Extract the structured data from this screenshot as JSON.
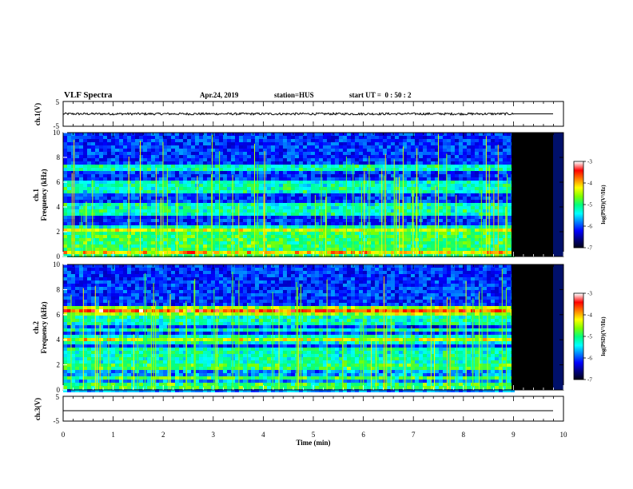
{
  "header": {
    "title": "VLF Spectra",
    "date": "Apr.24, 2019",
    "station": "station=HUS",
    "start": "start UT =  0 : 50 : 2"
  },
  "colors": {
    "background": "#000000",
    "colormap": [
      "#000010",
      "#00007f",
      "#0000ff",
      "#007fff",
      "#00ffff",
      "#00ff7f",
      "#7fff00",
      "#ffff00",
      "#ff7f00",
      "#ff0000",
      "#ffffff"
    ]
  },
  "chart_data": [
    {
      "type": "line",
      "panel": "ch1-waveform",
      "ylabel": "ch.1(V)",
      "ylim": [
        -5,
        5
      ],
      "yticks": [
        "5",
        "-5"
      ],
      "series": [
        {
          "x": [
            0,
            9
          ],
          "y": [
            0,
            0
          ]
        }
      ],
      "note_value": "signal near 0 V with small noise until ~9 min, flat afterwards"
    },
    {
      "type": "heatmap",
      "panel": "ch1-spectrogram",
      "ylabel": "ch.1\nFrequency (kHz)",
      "ylim": [
        0,
        10
      ],
      "yticks": [
        "0",
        "2",
        "4",
        "6",
        "8",
        "10"
      ],
      "data_end_min": 9.0,
      "colorbar": {
        "label": "log(PSD)(V²/Hz)",
        "range": [
          -7,
          -3
        ],
        "ticks": [
          "-3",
          "-4",
          "-5",
          "-6",
          "-7"
        ]
      },
      "bands_khz": [
        0.3,
        0.5,
        1.0,
        1.4,
        2.0,
        2.3,
        3.5,
        4.1,
        5.3,
        5.8,
        7.2
      ]
    },
    {
      "type": "heatmap",
      "panel": "ch2-spectrogram",
      "ylabel": "ch.2\nFrequency (kHz)",
      "ylim": [
        0,
        10
      ],
      "yticks": [
        "0",
        "2",
        "4",
        "6",
        "8",
        "10"
      ],
      "data_end_min": 9.0,
      "colorbar": {
        "label": "log(PSD)(V²/Hz)",
        "range": [
          -7,
          -3
        ],
        "ticks": [
          "-3",
          "-4",
          "-5",
          "-6",
          "-7"
        ]
      },
      "bands_khz": [
        0.4,
        1.0,
        1.6,
        2.1,
        2.6,
        3.0,
        3.8,
        4.2,
        4.8,
        5.3,
        5.8,
        6.1,
        6.5
      ]
    },
    {
      "type": "line",
      "panel": "ch3-waveform",
      "ylabel": "ch.3(V)",
      "ylim": [
        -5,
        5
      ],
      "yticks": [
        "5",
        "-5"
      ],
      "series": [
        {
          "x": [
            0,
            10
          ],
          "y": [
            -1,
            -1
          ]
        }
      ]
    }
  ],
  "xaxis": {
    "label": "Time (min)",
    "xlim": [
      0,
      10
    ],
    "ticks": [
      "0",
      "1",
      "2",
      "3",
      "4",
      "5",
      "6",
      "7",
      "8",
      "9",
      "10"
    ]
  }
}
